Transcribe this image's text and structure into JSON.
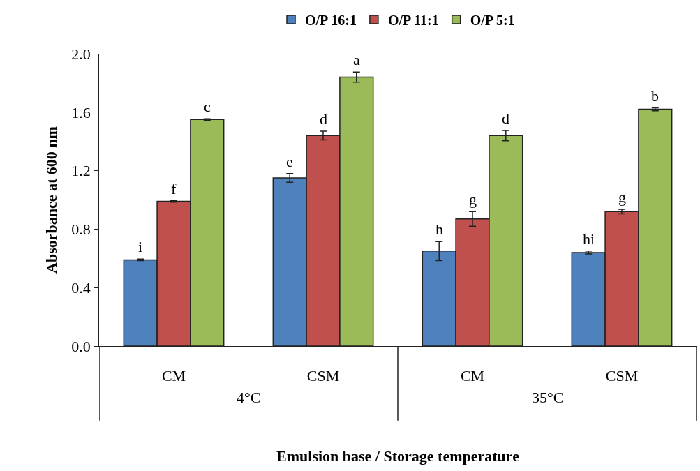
{
  "chart_data": {
    "type": "bar",
    "xlabel": "Emulsion base / Storage temperature",
    "ylabel": "Absorbance at 600 nm",
    "categories": [
      "CM",
      "CSM",
      "CM",
      "CSM"
    ],
    "series": [
      {
        "name": "O/P 16:1",
        "color": "#4f81bd",
        "values": [
          0.59,
          1.15,
          0.65,
          0.64
        ],
        "errors": [
          0.005,
          0.03,
          0.065,
          0.01
        ],
        "value_labels": [
          "i",
          "e",
          "h",
          "hi"
        ]
      },
      {
        "name": "O/P 11:1",
        "color": "#c0504d",
        "values": [
          0.99,
          1.44,
          0.87,
          0.92
        ],
        "errors": [
          0.005,
          0.03,
          0.05,
          0.015
        ],
        "value_labels": [
          "f",
          "d",
          "g",
          "g"
        ]
      },
      {
        "name": "O/P 5:1",
        "color": "#9bbb59",
        "values": [
          1.55,
          1.84,
          1.44,
          1.62
        ],
        "errors": [
          0.005,
          0.035,
          0.035,
          0.01
        ],
        "value_labels": [
          "c",
          "a",
          "d",
          "b"
        ]
      }
    ],
    "annotations": [
      "4°C",
      "35°C"
    ],
    "ylim": [
      0,
      2.0
    ],
    "yticks": [
      {
        "value": 0,
        "label": "0.0"
      },
      0.4,
      0.8,
      1.2,
      1.6,
      {
        "value": 2.0,
        "label": "2.0"
      }
    ],
    "legend": "top"
  }
}
